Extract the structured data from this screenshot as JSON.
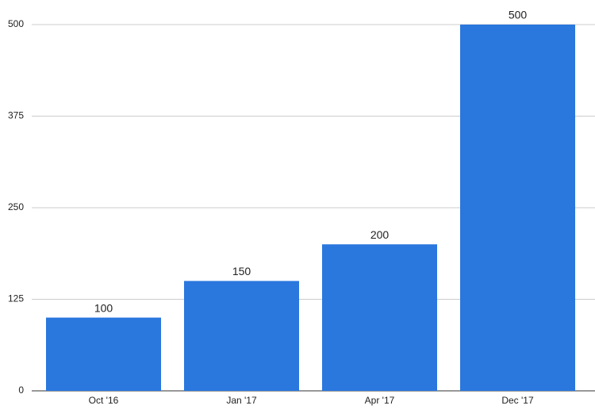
{
  "chart_data": {
    "type": "bar",
    "categories": [
      "Oct '16",
      "Jan '17",
      "Apr '17",
      "Dec '17"
    ],
    "values": [
      100,
      150,
      200,
      500
    ],
    "color": "#2a77de",
    "ylim": [
      0,
      500
    ],
    "yticks": [
      0,
      125,
      250,
      375,
      500
    ],
    "grid": true
  }
}
